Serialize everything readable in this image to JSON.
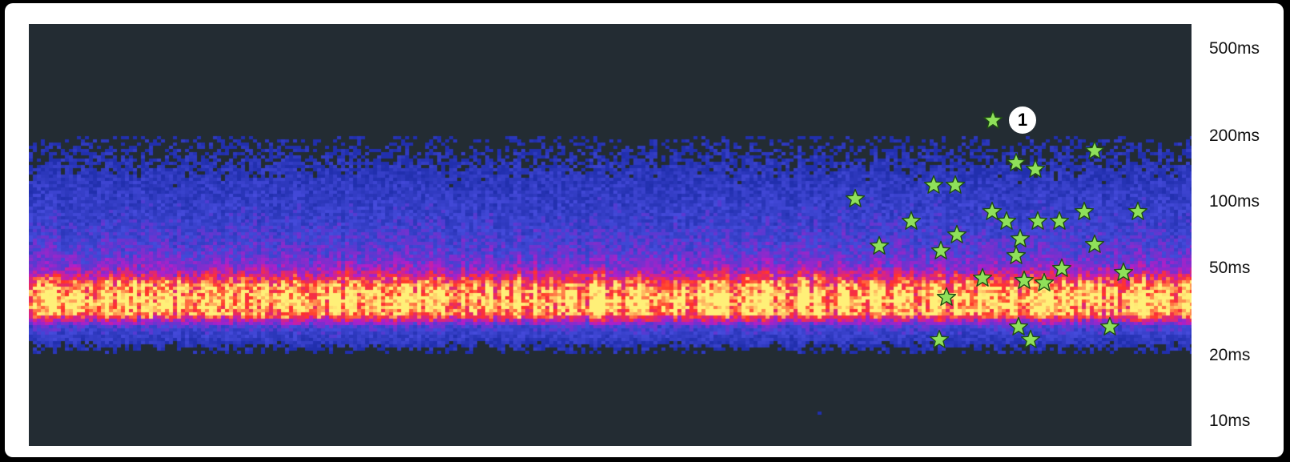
{
  "chart_data": {
    "type": "heatmap",
    "title": "",
    "xlabel": "",
    "ylabel": "",
    "y_scale": "log",
    "y_ticks": [
      "500ms",
      "200ms",
      "100ms",
      "50ms",
      "20ms",
      "10ms"
    ],
    "y_tick_values_ms": [
      500,
      200,
      100,
      50,
      20,
      10
    ],
    "ylim_ms": [
      7.7,
      650
    ],
    "x_range": [
      0,
      1452
    ],
    "colors": {
      "background": "#232c33",
      "low": "#2b3bc9",
      "mid": "#a11fd6",
      "high": "#ff2a2a",
      "peak": "#ffee66",
      "star_fill": "#8fe05a",
      "star_stroke": "#1e4d12"
    },
    "density_profile_ms": [
      {
        "ms": 27,
        "intensity": 0.28
      },
      {
        "ms": 31,
        "intensity": 0.92
      },
      {
        "ms": 36,
        "intensity": 1.0
      },
      {
        "ms": 42,
        "intensity": 0.88
      },
      {
        "ms": 50,
        "intensity": 0.45
      },
      {
        "ms": 60,
        "intensity": 0.32
      },
      {
        "ms": 80,
        "intensity": 0.22
      },
      {
        "ms": 110,
        "intensity": 0.15
      },
      {
        "ms": 150,
        "intensity": 0.08
      },
      {
        "ms": 200,
        "intensity": 0.02
      }
    ],
    "annotation_markers": [
      {
        "label": "1",
        "x": 1241,
        "ms": 236
      }
    ],
    "points": [
      {
        "x": 1204,
        "ms": 236
      },
      {
        "x": 1331,
        "ms": 172
      },
      {
        "x": 1233,
        "ms": 152
      },
      {
        "x": 1257,
        "ms": 142
      },
      {
        "x": 1130,
        "ms": 120
      },
      {
        "x": 1157,
        "ms": 120
      },
      {
        "x": 1032,
        "ms": 104
      },
      {
        "x": 1203,
        "ms": 91
      },
      {
        "x": 1318,
        "ms": 91
      },
      {
        "x": 1385,
        "ms": 91
      },
      {
        "x": 1102,
        "ms": 82
      },
      {
        "x": 1221,
        "ms": 82
      },
      {
        "x": 1260,
        "ms": 82
      },
      {
        "x": 1287,
        "ms": 82
      },
      {
        "x": 1159,
        "ms": 71
      },
      {
        "x": 1238,
        "ms": 68
      },
      {
        "x": 1062,
        "ms": 63
      },
      {
        "x": 1331,
        "ms": 64
      },
      {
        "x": 1139,
        "ms": 60
      },
      {
        "x": 1233,
        "ms": 57
      },
      {
        "x": 1290,
        "ms": 50
      },
      {
        "x": 1367,
        "ms": 48
      },
      {
        "x": 1191,
        "ms": 45
      },
      {
        "x": 1243,
        "ms": 44
      },
      {
        "x": 1268,
        "ms": 43
      },
      {
        "x": 1146,
        "ms": 37
      },
      {
        "x": 1236,
        "ms": 27
      },
      {
        "x": 1350,
        "ms": 27
      },
      {
        "x": 1137,
        "ms": 23.5
      },
      {
        "x": 1251,
        "ms": 23.5
      }
    ]
  },
  "axis": {
    "ticks": [
      "500ms",
      "200ms",
      "100ms",
      "50ms",
      "20ms",
      "10ms"
    ]
  }
}
